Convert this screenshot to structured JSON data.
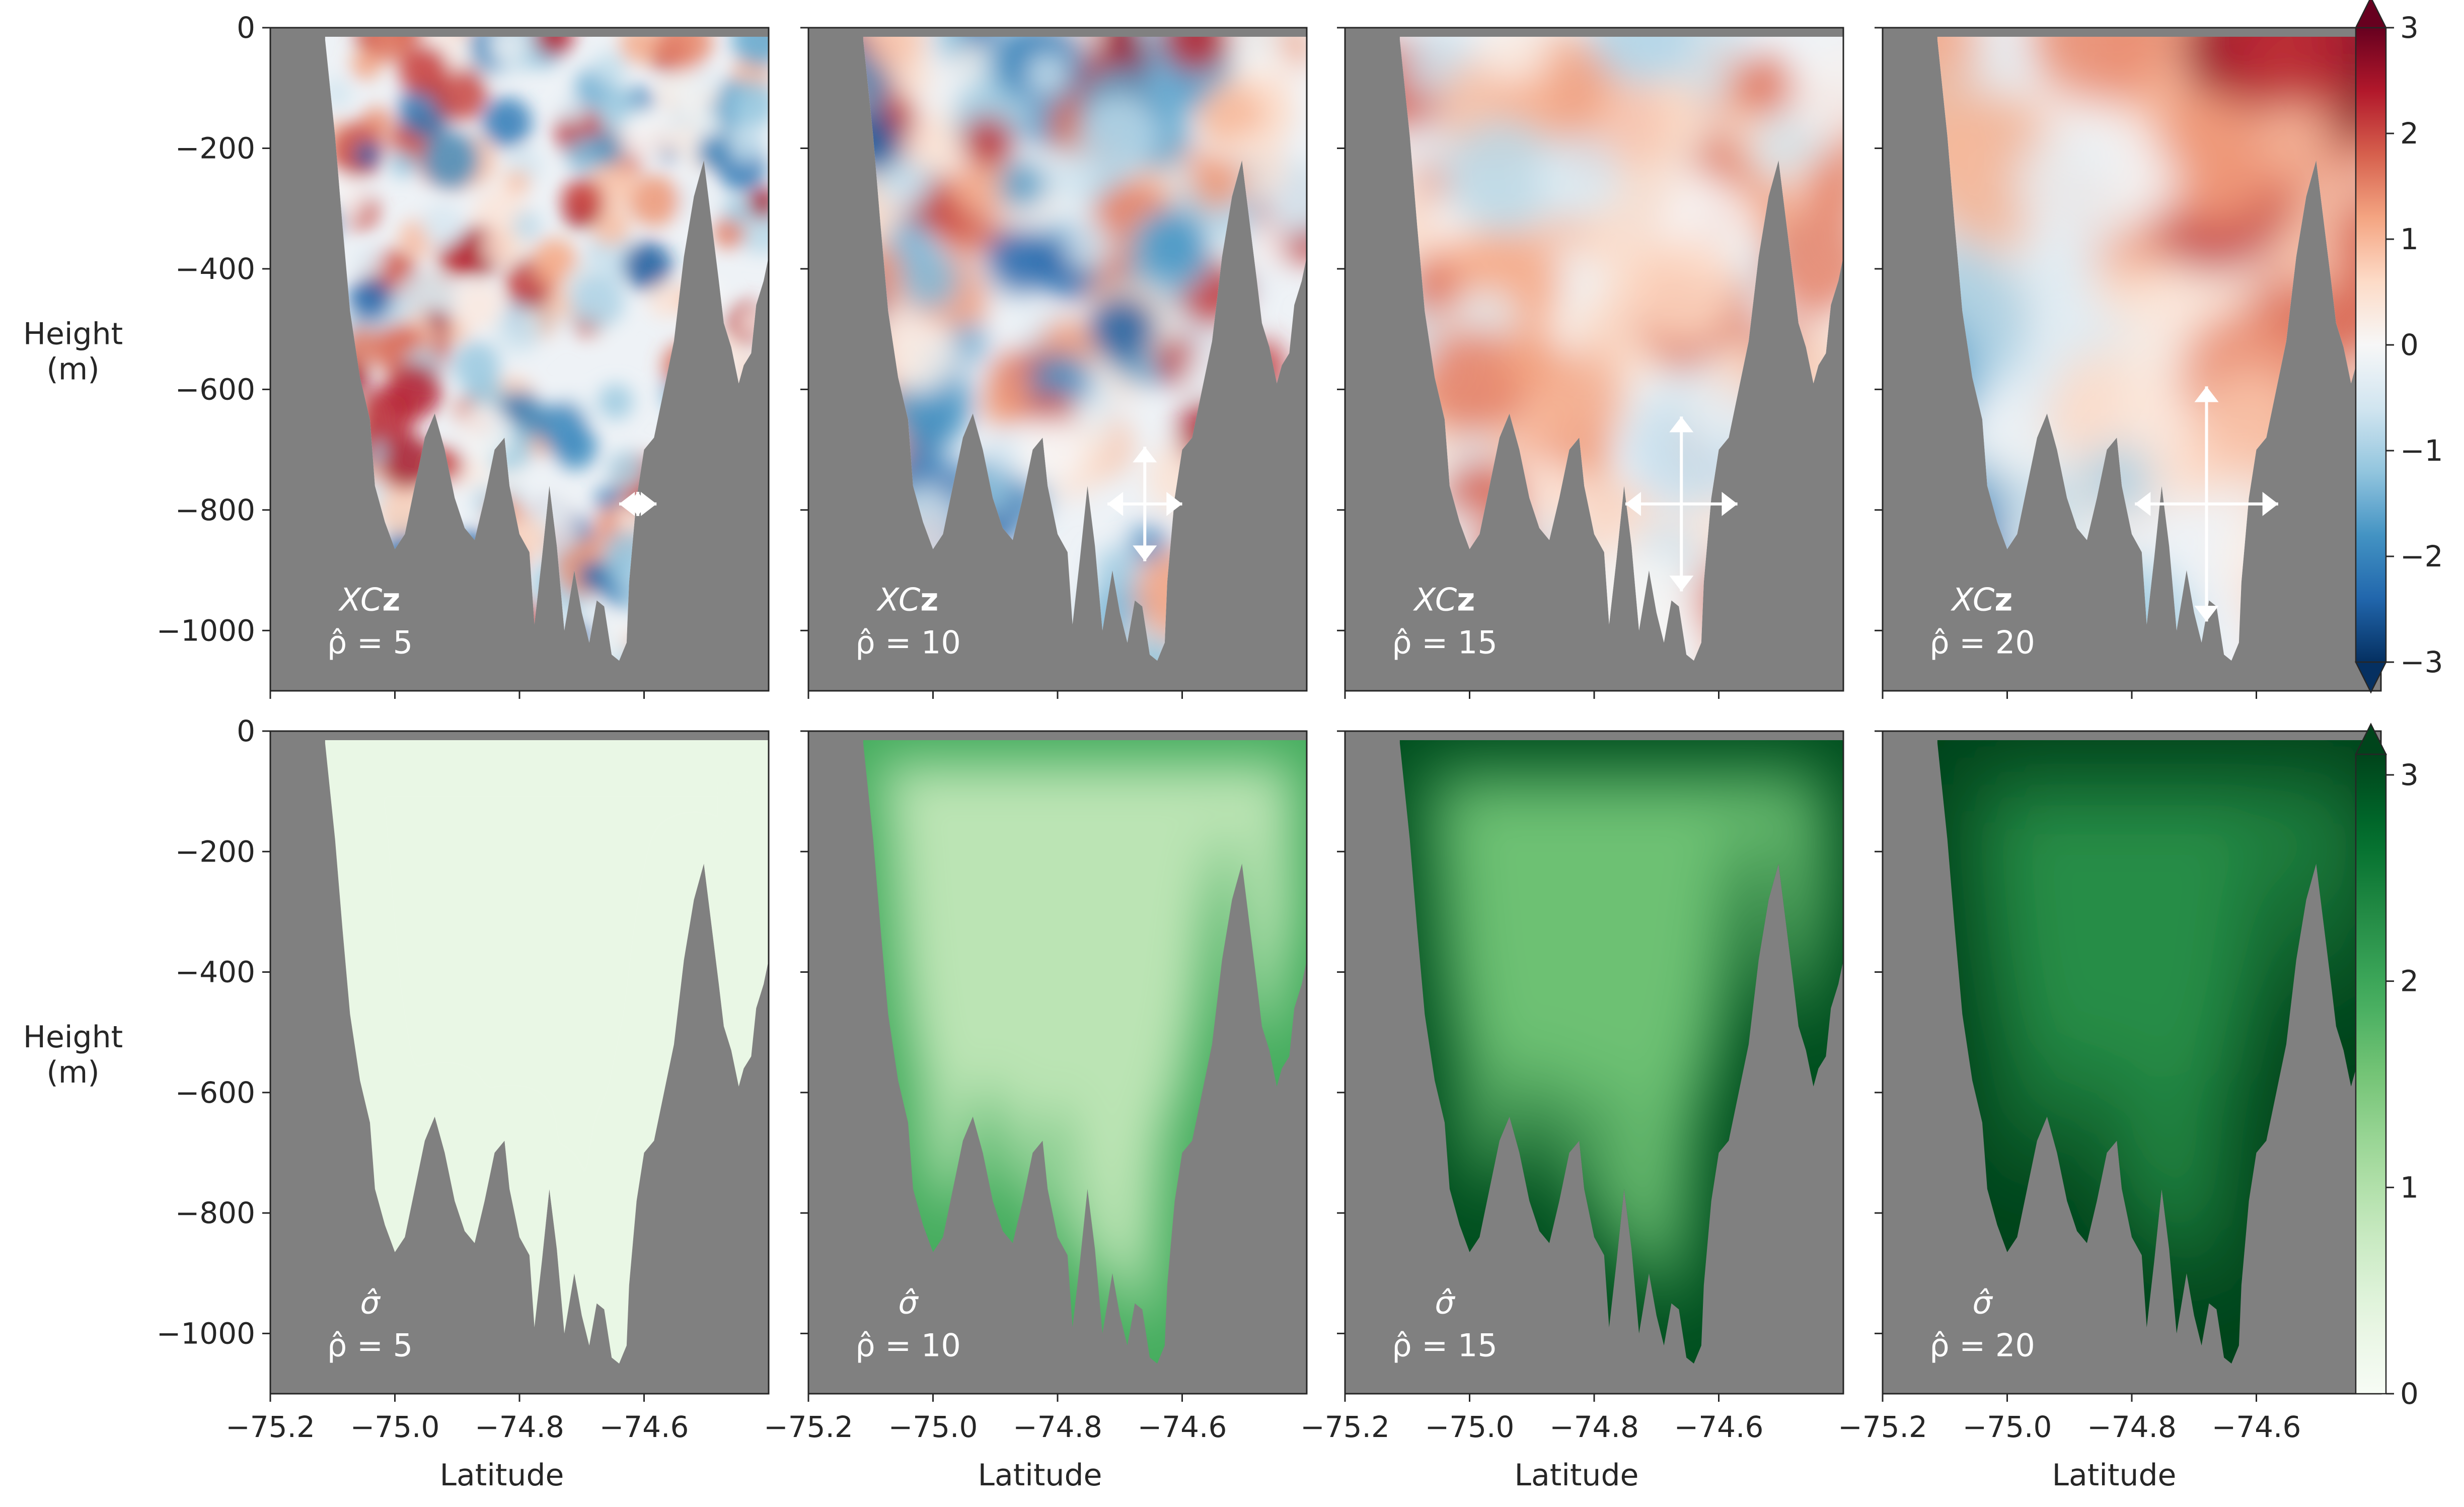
{
  "figure": {
    "ylabel": "Height\n(m)",
    "xlabel": "Latitude",
    "mask_color": "#808080"
  },
  "chart_data": [
    {
      "type": "heatmap",
      "row": "top",
      "col": 1,
      "label_line1": "XCz",
      "label_line2": "ρ̂ = 5",
      "rho": 5,
      "arrow_half_length_x": 0.03,
      "arrow_half_length_y": 20,
      "colormap": "RdBu_r",
      "xlim": [
        -75.2,
        -74.4
      ],
      "ylim": [
        -1100,
        0
      ],
      "xticks": [
        -75.2,
        -75.0,
        -74.8,
        -74.6
      ],
      "xtick_labels": [
        "−75.2",
        "−75.0",
        "−74.8",
        "−74.6"
      ],
      "yticks": [
        0,
        -200,
        -400,
        -600,
        -800,
        -1000
      ],
      "ytick_labels": [
        "0",
        "−200",
        "−400",
        "−600",
        "−800",
        "−1000"
      ]
    },
    {
      "type": "heatmap",
      "row": "top",
      "col": 2,
      "label_line1": "XCz",
      "label_line2": "ρ̂ = 10",
      "rho": 10,
      "arrow_half_length_x": 0.06,
      "arrow_half_length_y": 95,
      "colormap": "RdBu_r",
      "xlim": [
        -75.2,
        -74.4
      ],
      "ylim": [
        -1100,
        0
      ],
      "xticks": [
        -75.2,
        -75.0,
        -74.8,
        -74.6
      ],
      "xtick_labels": [
        "−75.2",
        "−75.0",
        "−74.8",
        "−74.6"
      ]
    },
    {
      "type": "heatmap",
      "row": "top",
      "col": 3,
      "label_line1": "XCz",
      "label_line2": "ρ̂ = 15",
      "rho": 15,
      "arrow_half_length_x": 0.09,
      "arrow_half_length_y": 145,
      "colormap": "RdBu_r",
      "xlim": [
        -75.2,
        -74.4
      ],
      "ylim": [
        -1100,
        0
      ],
      "xticks": [
        -75.2,
        -75.0,
        -74.8,
        -74.6
      ],
      "xtick_labels": [
        "−75.2",
        "−75.0",
        "−74.8",
        "−74.6"
      ]
    },
    {
      "type": "heatmap",
      "row": "top",
      "col": 4,
      "label_line1": "XCz",
      "label_line2": "ρ̂ = 20",
      "rho": 20,
      "arrow_half_length_x": 0.115,
      "arrow_half_length_y": 195,
      "colormap": "RdBu_r",
      "xlim": [
        -75.2,
        -74.4
      ],
      "ylim": [
        -1100,
        0
      ],
      "xticks": [
        -75.2,
        -75.0,
        -74.8,
        -74.6
      ],
      "xtick_labels": [
        "−75.2",
        "−75.0",
        "−74.8",
        "−74.6"
      ]
    },
    {
      "type": "heatmap",
      "row": "bottom",
      "col": 1,
      "label_line1": "σ̂",
      "label_line2": "ρ̂ = 5",
      "rho": 5,
      "colormap": "Greens",
      "typical_value": 0.3,
      "edge_value": 0.3,
      "xlim": [
        -75.2,
        -74.4
      ],
      "ylim": [
        -1100,
        0
      ],
      "xticks": [
        -75.2,
        -75.0,
        -74.8,
        -74.6
      ],
      "xtick_labels": [
        "−75.2",
        "−75.0",
        "−74.8",
        "−74.6"
      ],
      "yticks": [
        0,
        -200,
        -400,
        -600,
        -800,
        -1000
      ],
      "ytick_labels": [
        "0",
        "−200",
        "−400",
        "−600",
        "−800",
        "−1000"
      ]
    },
    {
      "type": "heatmap",
      "row": "bottom",
      "col": 2,
      "label_line1": "σ̂",
      "label_line2": "ρ̂ = 10",
      "rho": 10,
      "colormap": "Greens",
      "typical_value": 0.9,
      "edge_value": 1.9,
      "xlim": [
        -75.2,
        -74.4
      ],
      "ylim": [
        -1100,
        0
      ],
      "xticks": [
        -75.2,
        -75.0,
        -74.8,
        -74.6
      ],
      "xtick_labels": [
        "−75.2",
        "−75.0",
        "−74.8",
        "−74.6"
      ]
    },
    {
      "type": "heatmap",
      "row": "bottom",
      "col": 3,
      "label_line1": "σ̂",
      "label_line2": "ρ̂ = 15",
      "rho": 15,
      "colormap": "Greens",
      "typical_value": 1.6,
      "edge_value": 3.0,
      "xlim": [
        -75.2,
        -74.4
      ],
      "ylim": [
        -1100,
        0
      ],
      "xticks": [
        -75.2,
        -75.0,
        -74.8,
        -74.6
      ],
      "xtick_labels": [
        "−75.2",
        "−75.0",
        "−74.8",
        "−74.6"
      ]
    },
    {
      "type": "heatmap",
      "row": "bottom",
      "col": 4,
      "label_line1": "σ̂",
      "label_line2": "ρ̂ = 20",
      "rho": 20,
      "colormap": "Greens",
      "typical_value": 2.3,
      "edge_value": 3.1,
      "xlim": [
        -75.2,
        -74.4
      ],
      "ylim": [
        -1100,
        0
      ],
      "xticks": [
        -75.2,
        -75.0,
        -74.8,
        -74.6
      ],
      "xtick_labels": [
        "−75.2",
        "−75.0",
        "−74.8",
        "−74.6"
      ]
    }
  ],
  "colorbars": [
    {
      "row": "top",
      "colormap": "RdBu_r",
      "range": [
        -3,
        3
      ],
      "extend": "both",
      "ticks": [
        3,
        2,
        1,
        0,
        -1,
        -2,
        -3
      ],
      "tick_labels": [
        "3",
        "2",
        "1",
        "0",
        "−1",
        "−2",
        "−3"
      ]
    },
    {
      "row": "bottom",
      "colormap": "Greens",
      "range": [
        0,
        3.1
      ],
      "extend": "max",
      "ticks": [
        3,
        2,
        1,
        0
      ],
      "tick_labels": [
        "3",
        "2",
        "1",
        "0"
      ]
    }
  ],
  "colors": {
    "rdbu": [
      "#053061",
      "#2166ac",
      "#4393c3",
      "#92c5de",
      "#d1e5f0",
      "#f7f7f7",
      "#fddbc7",
      "#f4a582",
      "#d6604d",
      "#b2182b",
      "#67001f"
    ],
    "greens": [
      "#f7fcf5",
      "#e5f5e0",
      "#c7e9c0",
      "#a1d99b",
      "#74c476",
      "#41ab5d",
      "#238b45",
      "#006d2c",
      "#00441b"
    ]
  }
}
